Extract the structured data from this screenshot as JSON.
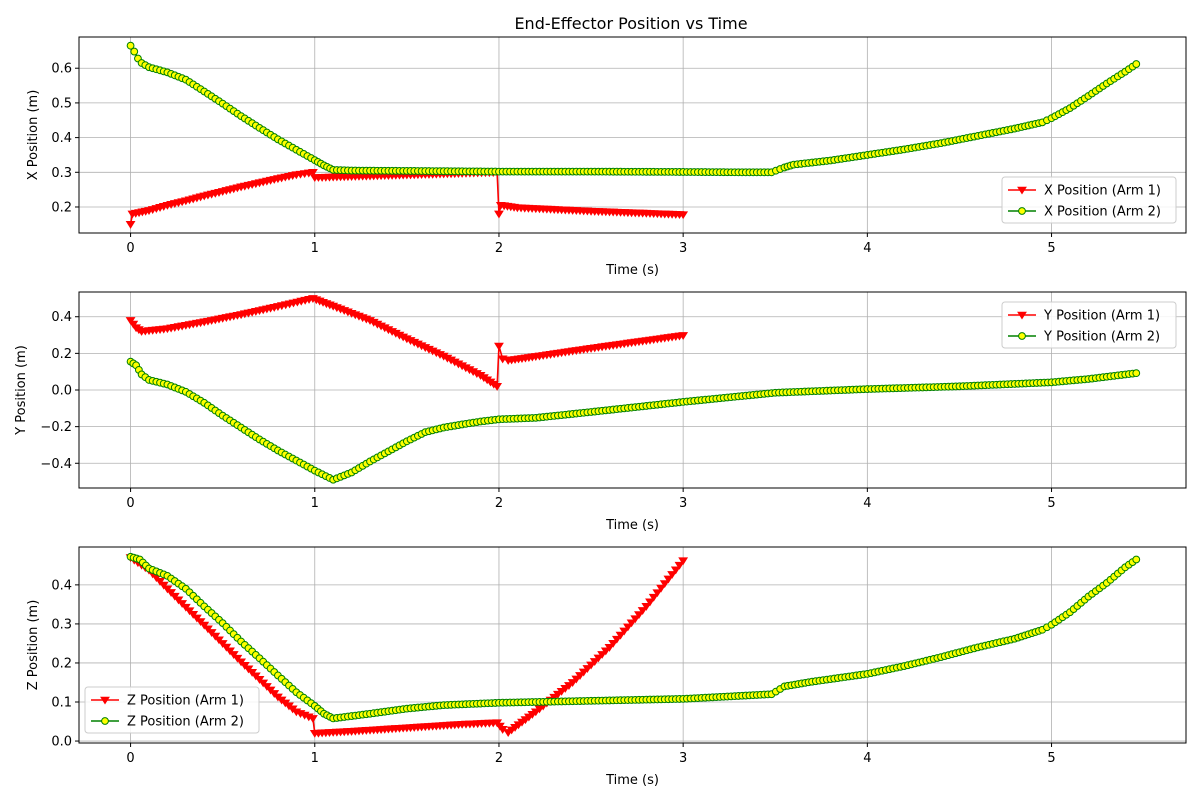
{
  "figure": {
    "title": "End-Effector Position vs Time"
  },
  "chart_data": [
    {
      "type": "line",
      "title": "End-Effector Position vs Time",
      "xlabel": "Time (s)",
      "ylabel": "X Position (m)",
      "xlim": [
        -0.28,
        5.73
      ],
      "ylim": [
        0.125,
        0.69
      ],
      "xticks": [
        0,
        1,
        2,
        3,
        4,
        5
      ],
      "xtick_labels": [
        "0",
        "1",
        "2",
        "3",
        "4",
        "5"
      ],
      "yticks": [
        0.2,
        0.3,
        0.4,
        0.5,
        0.6
      ],
      "ytick_labels": [
        "0.2",
        "0.3",
        "0.4",
        "0.5",
        "0.6"
      ],
      "grid": true,
      "legend_position": "lower-right",
      "series": [
        {
          "name": "X Position (Arm 1)",
          "color": "#ff0000",
          "marker": "triangle-down",
          "marker_face": "#ff0000",
          "points": [
            [
              0,
              0.15
            ],
            [
              0.01,
              0.18
            ],
            [
              0.1,
              0.19
            ],
            [
              0.2,
              0.205
            ],
            [
              0.3,
              0.218
            ],
            [
              0.4,
              0.232
            ],
            [
              0.5,
              0.245
            ],
            [
              0.6,
              0.258
            ],
            [
              0.7,
              0.27
            ],
            [
              0.8,
              0.282
            ],
            [
              0.9,
              0.293
            ],
            [
              0.99,
              0.3
            ],
            [
              1.0,
              0.285
            ],
            [
              1.2,
              0.288
            ],
            [
              1.4,
              0.291
            ],
            [
              1.6,
              0.294
            ],
            [
              1.8,
              0.297
            ],
            [
              1.99,
              0.3
            ],
            [
              2.0,
              0.18
            ],
            [
              2.01,
              0.205
            ],
            [
              2.1,
              0.198
            ],
            [
              2.3,
              0.193
            ],
            [
              2.5,
              0.188
            ],
            [
              2.7,
              0.184
            ],
            [
              2.9,
              0.18
            ],
            [
              3.0,
              0.178
            ]
          ]
        },
        {
          "name": "X Position (Arm 2)",
          "color": "#008000",
          "marker": "circle",
          "marker_face": "#ffff00",
          "points": [
            [
              0,
              0.665
            ],
            [
              0.02,
              0.648
            ],
            [
              0.04,
              0.628
            ],
            [
              0.06,
              0.615
            ],
            [
              0.1,
              0.603
            ],
            [
              0.2,
              0.588
            ],
            [
              0.3,
              0.567
            ],
            [
              0.4,
              0.533
            ],
            [
              0.5,
              0.498
            ],
            [
              0.6,
              0.462
            ],
            [
              0.7,
              0.428
            ],
            [
              0.8,
              0.395
            ],
            [
              0.9,
              0.365
            ],
            [
              1.0,
              0.335
            ],
            [
              1.05,
              0.32
            ],
            [
              1.1,
              0.307
            ],
            [
              1.2,
              0.305
            ],
            [
              1.5,
              0.304
            ],
            [
              2.0,
              0.302
            ],
            [
              2.5,
              0.302
            ],
            [
              3.0,
              0.301
            ],
            [
              3.3,
              0.3
            ],
            [
              3.48,
              0.3
            ],
            [
              3.55,
              0.314
            ],
            [
              3.6,
              0.322
            ],
            [
              3.8,
              0.334
            ],
            [
              4.0,
              0.35
            ],
            [
              4.2,
              0.366
            ],
            [
              4.4,
              0.384
            ],
            [
              4.6,
              0.405
            ],
            [
              4.8,
              0.426
            ],
            [
              4.95,
              0.444
            ],
            [
              5.0,
              0.456
            ],
            [
              5.1,
              0.485
            ],
            [
              5.2,
              0.52
            ],
            [
              5.3,
              0.556
            ],
            [
              5.4,
              0.59
            ],
            [
              5.46,
              0.612
            ]
          ]
        }
      ]
    },
    {
      "type": "line",
      "title": "",
      "xlabel": "Time (s)",
      "ylabel": "Y Position (m)",
      "xlim": [
        -0.28,
        5.73
      ],
      "ylim": [
        -0.535,
        0.535
      ],
      "xticks": [
        0,
        1,
        2,
        3,
        4,
        5
      ],
      "xtick_labels": [
        "0",
        "1",
        "2",
        "3",
        "4",
        "5"
      ],
      "yticks": [
        -0.4,
        -0.2,
        0.0,
        0.2,
        0.4
      ],
      "ytick_labels": [
        "−0.4",
        "−0.2",
        "0.0",
        "0.2",
        "0.4"
      ],
      "grid": true,
      "legend_position": "upper-right",
      "series": [
        {
          "name": "Y Position (Arm 1)",
          "color": "#ff0000",
          "marker": "triangle-down",
          "marker_face": "#ff0000",
          "points": [
            [
              0,
              0.38
            ],
            [
              0.03,
              0.34
            ],
            [
              0.06,
              0.32
            ],
            [
              0.2,
              0.335
            ],
            [
              0.4,
              0.372
            ],
            [
              0.6,
              0.412
            ],
            [
              0.8,
              0.456
            ],
            [
              0.99,
              0.5
            ],
            [
              1.1,
              0.458
            ],
            [
              1.3,
              0.38
            ],
            [
              1.5,
              0.28
            ],
            [
              1.7,
              0.185
            ],
            [
              1.9,
              0.08
            ],
            [
              1.99,
              0.02
            ],
            [
              2.0,
              0.24
            ],
            [
              2.02,
              0.17
            ],
            [
              2.05,
              0.162
            ],
            [
              2.2,
              0.183
            ],
            [
              2.4,
              0.213
            ],
            [
              2.6,
              0.242
            ],
            [
              2.8,
              0.27
            ],
            [
              3.0,
              0.298
            ]
          ]
        },
        {
          "name": "Y Position (Arm 2)",
          "color": "#008000",
          "marker": "circle",
          "marker_face": "#ffff00",
          "points": [
            [
              0,
              0.155
            ],
            [
              0.03,
              0.135
            ],
            [
              0.06,
              0.085
            ],
            [
              0.1,
              0.055
            ],
            [
              0.2,
              0.03
            ],
            [
              0.3,
              -0.01
            ],
            [
              0.4,
              -0.07
            ],
            [
              0.5,
              -0.14
            ],
            [
              0.6,
              -0.205
            ],
            [
              0.7,
              -0.27
            ],
            [
              0.8,
              -0.33
            ],
            [
              0.9,
              -0.385
            ],
            [
              1.0,
              -0.44
            ],
            [
              1.1,
              -0.49
            ],
            [
              1.2,
              -0.45
            ],
            [
              1.3,
              -0.39
            ],
            [
              1.4,
              -0.335
            ],
            [
              1.5,
              -0.28
            ],
            [
              1.6,
              -0.23
            ],
            [
              1.7,
              -0.205
            ],
            [
              1.8,
              -0.188
            ],
            [
              1.9,
              -0.172
            ],
            [
              2.0,
              -0.16
            ],
            [
              2.2,
              -0.152
            ],
            [
              2.5,
              -0.12
            ],
            [
              3.0,
              -0.065
            ],
            [
              3.5,
              -0.015
            ],
            [
              4.0,
              0.005
            ],
            [
              4.5,
              0.02
            ],
            [
              5.0,
              0.042
            ],
            [
              5.2,
              0.06
            ],
            [
              5.46,
              0.092
            ]
          ]
        }
      ]
    },
    {
      "type": "line",
      "title": "",
      "xlabel": "Time (s)",
      "ylabel": "Z Position (m)",
      "xlim": [
        -0.28,
        5.73
      ],
      "ylim": [
        -0.005,
        0.497
      ],
      "xticks": [
        0,
        1,
        2,
        3,
        4,
        5
      ],
      "xtick_labels": [
        "0",
        "1",
        "2",
        "3",
        "4",
        "5"
      ],
      "yticks": [
        0.0,
        0.1,
        0.2,
        0.3,
        0.4
      ],
      "ytick_labels": [
        "0.0",
        "0.1",
        "0.2",
        "0.3",
        "0.4"
      ],
      "grid": true,
      "legend_position": "lower-left",
      "series": [
        {
          "name": "Z Position (Arm 1)",
          "color": "#ff0000",
          "marker": "triangle-down",
          "marker_face": "#ff0000",
          "points": [
            [
              0,
              0.47
            ],
            [
              0.1,
              0.438
            ],
            [
              0.2,
              0.39
            ],
            [
              0.3,
              0.343
            ],
            [
              0.4,
              0.297
            ],
            [
              0.5,
              0.25
            ],
            [
              0.6,
              0.203
            ],
            [
              0.7,
              0.158
            ],
            [
              0.8,
              0.113
            ],
            [
              0.9,
              0.075
            ],
            [
              0.99,
              0.058
            ],
            [
              1.0,
              0.02
            ],
            [
              1.2,
              0.025
            ],
            [
              1.4,
              0.031
            ],
            [
              1.6,
              0.037
            ],
            [
              1.8,
              0.043
            ],
            [
              1.99,
              0.047
            ],
            [
              2.02,
              0.03
            ],
            [
              2.05,
              0.022
            ],
            [
              2.2,
              0.075
            ],
            [
              2.4,
              0.15
            ],
            [
              2.6,
              0.24
            ],
            [
              2.8,
              0.345
            ],
            [
              3.0,
              0.462
            ]
          ]
        },
        {
          "name": "Z Position (Arm 2)",
          "color": "#008000",
          "marker": "circle",
          "marker_face": "#ffff00",
          "points": [
            [
              0,
              0.472
            ],
            [
              0.05,
              0.465
            ],
            [
              0.1,
              0.442
            ],
            [
              0.2,
              0.423
            ],
            [
              0.3,
              0.39
            ],
            [
              0.4,
              0.345
            ],
            [
              0.5,
              0.302
            ],
            [
              0.6,
              0.255
            ],
            [
              0.7,
              0.212
            ],
            [
              0.8,
              0.168
            ],
            [
              0.9,
              0.125
            ],
            [
              1.0,
              0.09
            ],
            [
              1.05,
              0.07
            ],
            [
              1.1,
              0.058
            ],
            [
              1.3,
              0.07
            ],
            [
              1.5,
              0.083
            ],
            [
              1.7,
              0.092
            ],
            [
              2.0,
              0.098
            ],
            [
              2.5,
              0.103
            ],
            [
              3.0,
              0.108
            ],
            [
              3.48,
              0.12
            ],
            [
              3.55,
              0.14
            ],
            [
              3.7,
              0.152
            ],
            [
              4.0,
              0.172
            ],
            [
              4.2,
              0.192
            ],
            [
              4.4,
              0.215
            ],
            [
              4.6,
              0.24
            ],
            [
              4.8,
              0.262
            ],
            [
              4.95,
              0.285
            ],
            [
              5.0,
              0.298
            ],
            [
              5.1,
              0.33
            ],
            [
              5.2,
              0.37
            ],
            [
              5.3,
              0.405
            ],
            [
              5.4,
              0.445
            ],
            [
              5.46,
              0.465
            ]
          ]
        }
      ]
    }
  ]
}
